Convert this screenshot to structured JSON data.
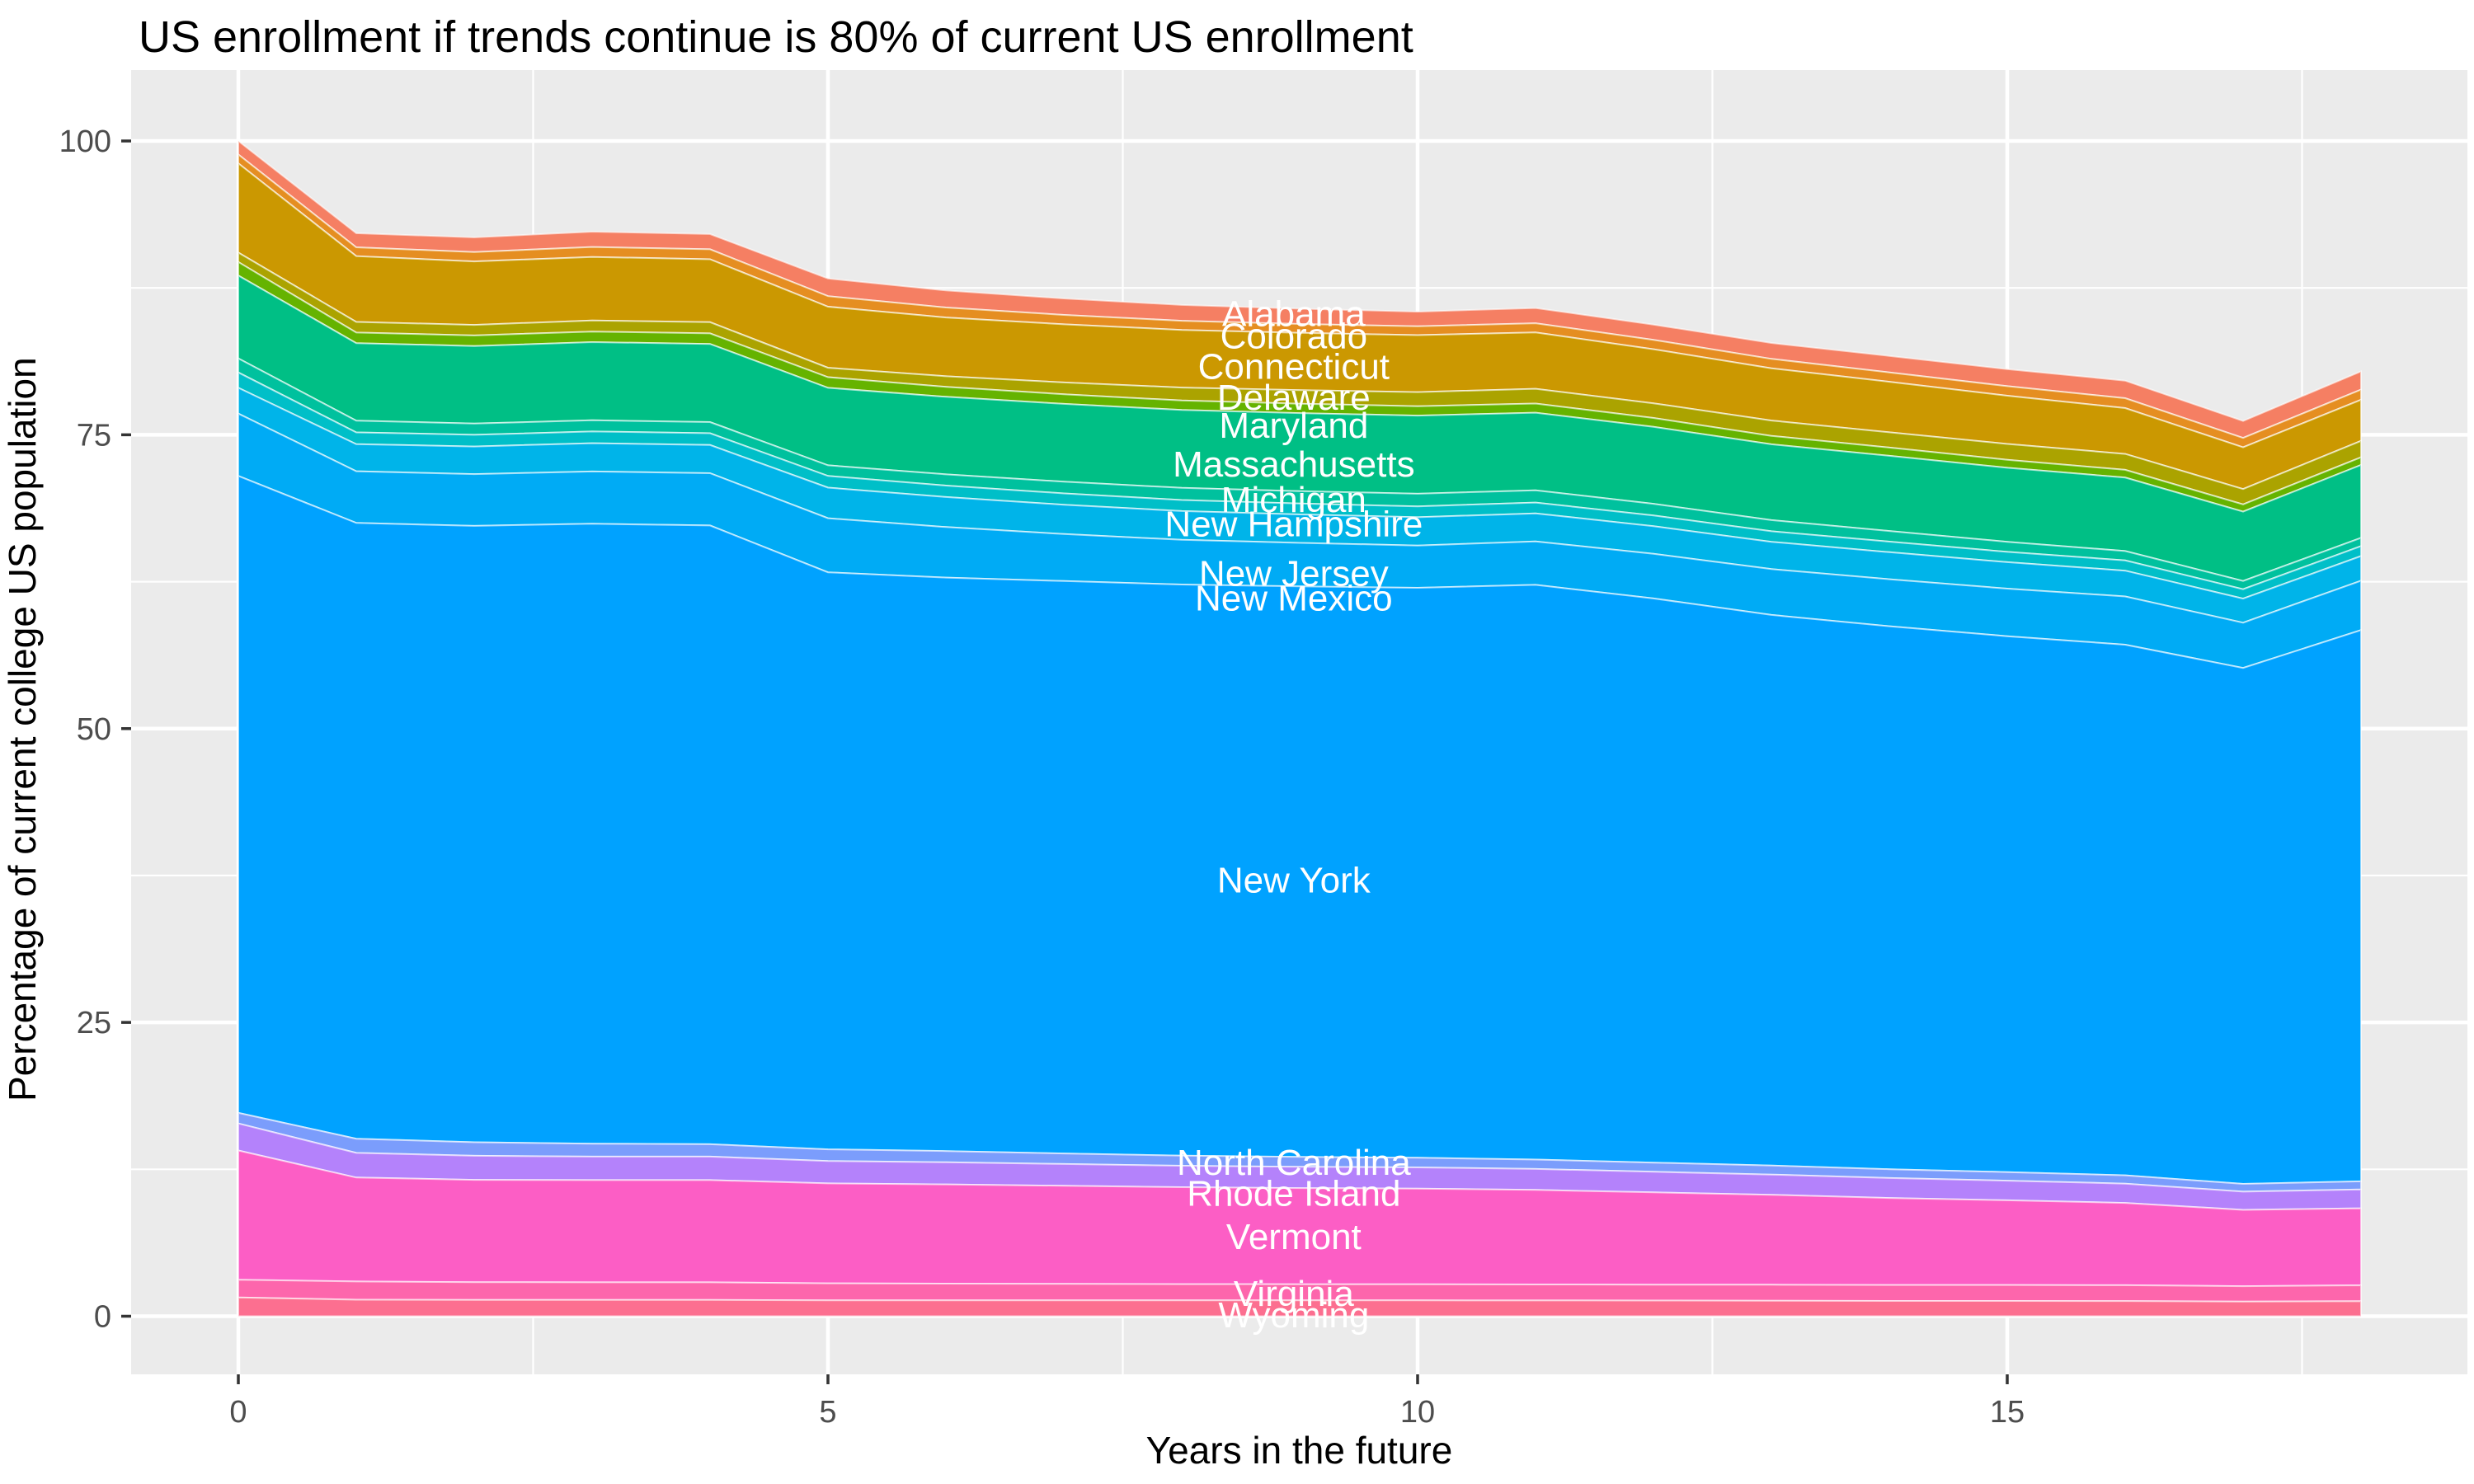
{
  "page": {
    "background": "#FFFFFF"
  },
  "chart_data": {
    "type": "area",
    "stacked": true,
    "title": "US enrollment if trends continue is 80% of current US enrollment",
    "xlabel": "Years in the future",
    "ylabel": "Percentage of current college US population",
    "grid": "on",
    "legend_position": "none",
    "panel_background": "#EBEBEB",
    "grid_color": "#FFFFFF",
    "tick_color": "#333333",
    "tick_label_color": "#4D4D4D",
    "title_color": "#000000",
    "area_label_color": "#FFFFFF",
    "xlim": [
      0,
      18
    ],
    "ylim": [
      0,
      100
    ],
    "x": [
      0,
      1,
      2,
      3,
      4,
      5,
      6,
      7,
      8,
      9,
      10,
      11,
      12,
      13,
      14,
      15,
      16,
      17,
      18
    ],
    "x_ticks": [
      0,
      5,
      10,
      15
    ],
    "x_minor_gridlines": [
      2.5,
      7.5,
      12.5,
      17.5
    ],
    "y_ticks": [
      0,
      25,
      50,
      75,
      100
    ],
    "y_minor_gridlines": [
      12.5,
      37.5,
      62.5,
      87.5
    ],
    "series": [
      {
        "name": "Alabama",
        "color": "#F57F63",
        "label_x": 8.95,
        "label_y": 85.3,
        "values": [
          1.15,
          1.2,
          1.25,
          1.3,
          1.3,
          1.5,
          1.45,
          1.4,
          1.35,
          1.3,
          1.25,
          1.3,
          1.3,
          1.35,
          1.4,
          1.45,
          1.5,
          1.45,
          1.55
        ]
      },
      {
        "name": "Colorado",
        "color": "#E58E21",
        "label_x": 8.95,
        "label_y": 83.4,
        "values": [
          0.75,
          0.75,
          0.8,
          0.85,
          0.85,
          0.9,
          0.85,
          0.8,
          0.78,
          0.76,
          0.75,
          0.78,
          0.8,
          0.8,
          0.8,
          0.82,
          0.84,
          0.8,
          0.86
        ]
      },
      {
        "name": "Connecticut",
        "color": "#CB9801",
        "label_x": 8.95,
        "label_y": 80.8,
        "values": [
          7.6,
          5.6,
          5.4,
          5.4,
          5.35,
          5.2,
          5.0,
          4.95,
          4.9,
          4.88,
          4.85,
          4.8,
          4.6,
          4.45,
          4.3,
          4.1,
          3.9,
          3.55,
          3.5
        ]
      },
      {
        "name": "Delaware",
        "color": "#ABA300",
        "label_x": 8.95,
        "label_y": 78.2,
        "values": [
          0.8,
          0.9,
          0.9,
          0.95,
          0.95,
          0.8,
          0.9,
          1.0,
          1.1,
          1.15,
          1.2,
          1.25,
          1.25,
          1.3,
          1.3,
          1.35,
          1.35,
          1.3,
          1.4
        ]
      },
      {
        "name": "Maryland",
        "color": "#65B300",
        "label_x": 8.95,
        "label_y": 75.8,
        "values": [
          1.15,
          0.9,
          0.9,
          0.9,
          0.9,
          0.9,
          0.85,
          0.82,
          0.81,
          0.8,
          0.8,
          0.78,
          0.75,
          0.72,
          0.7,
          0.68,
          0.66,
          0.62,
          0.65
        ]
      },
      {
        "name": "Massachusetts",
        "color": "#00BF85",
        "label_x": 8.95,
        "label_y": 72.5,
        "values": [
          7.05,
          6.6,
          6.6,
          6.65,
          6.65,
          6.6,
          6.6,
          6.62,
          6.63,
          6.64,
          6.65,
          6.6,
          6.55,
          6.45,
          6.4,
          6.3,
          6.25,
          5.9,
          6.2
        ]
      },
      {
        "name": "Michigan",
        "color": "#00C19E",
        "label_x": 8.95,
        "label_y": 69.5,
        "values": [
          1.2,
          1.0,
          0.95,
          0.95,
          0.95,
          0.9,
          0.95,
          1.0,
          1.03,
          1.05,
          1.07,
          1.05,
          1.0,
          0.95,
          0.9,
          0.85,
          0.8,
          0.7,
          0.7
        ]
      },
      {
        "name": "New Hampshire",
        "color": "#00BFC8",
        "label_x": 8.95,
        "label_y": 67.4,
        "values": [
          1.3,
          1.0,
          1.0,
          1.0,
          1.0,
          1.0,
          0.98,
          0.96,
          0.94,
          0.93,
          0.93,
          0.92,
          0.91,
          0.9,
          0.9,
          0.88,
          0.87,
          0.8,
          0.85
        ]
      },
      {
        "name": "New Jersey",
        "color": "#00B4E9",
        "label_x": 8.95,
        "label_y": 63.2,
        "values": [
          2.2,
          2.3,
          2.35,
          2.4,
          2.4,
          2.6,
          2.55,
          2.5,
          2.45,
          2.42,
          2.4,
          2.38,
          2.35,
          2.32,
          2.3,
          2.25,
          2.2,
          2.05,
          2.1
        ]
      },
      {
        "name": "New Mexico",
        "color": "#00ABF5",
        "label_x": 8.95,
        "label_y": 61.1,
        "values": [
          5.3,
          4.4,
          4.4,
          4.45,
          4.45,
          4.6,
          4.3,
          4.0,
          3.8,
          3.7,
          3.6,
          3.7,
          3.8,
          3.9,
          4.0,
          4.05,
          4.1,
          3.85,
          4.2
        ]
      },
      {
        "name": "New York",
        "color": "#00A2FF",
        "label_x": 8.95,
        "label_y": 37.1,
        "values": [
          54.2,
          52.4,
          52.45,
          52.75,
          52.65,
          49.1,
          48.8,
          48.7,
          48.6,
          48.55,
          48.5,
          48.9,
          48.0,
          46.85,
          46.2,
          45.6,
          45.15,
          43.9,
          46.9
        ]
      },
      {
        "name": "North Carolina",
        "color": "#7B9DFC",
        "label_x": 8.95,
        "label_y": 13.1,
        "values": [
          0.9,
          1.2,
          1.15,
          1.1,
          1.05,
          1.0,
          0.95,
          0.9,
          0.86,
          0.84,
          0.82,
          0.8,
          0.78,
          0.77,
          0.75,
          0.73,
          0.71,
          0.66,
          0.7
        ]
      },
      {
        "name": "Rhode Island",
        "color": "#B482FB",
        "label_x": 8.95,
        "label_y": 10.45,
        "values": [
          2.3,
          2.1,
          2.05,
          2.0,
          2.0,
          1.9,
          1.88,
          1.85,
          1.82,
          1.81,
          1.8,
          1.78,
          1.75,
          1.72,
          1.7,
          1.67,
          1.64,
          1.55,
          1.6
        ]
      },
      {
        "name": "Vermont",
        "color": "#FC5EC5",
        "label_x": 8.95,
        "label_y": 6.77,
        "values": [
          11.0,
          8.85,
          8.7,
          8.7,
          8.7,
          8.5,
          8.45,
          8.35,
          8.25,
          8.18,
          8.14,
          8.05,
          7.85,
          7.65,
          7.4,
          7.2,
          7.0,
          6.5,
          6.55
        ]
      },
      {
        "name": "Virginia",
        "color": "#FD66AC",
        "label_x": 8.95,
        "label_y": 1.93,
        "values": [
          1.5,
          1.55,
          1.52,
          1.5,
          1.5,
          1.45,
          1.42,
          1.4,
          1.38,
          1.37,
          1.37,
          1.36,
          1.36,
          1.36,
          1.36,
          1.36,
          1.35,
          1.3,
          1.35
        ]
      },
      {
        "name": "Wyoming",
        "color": "#FC6F90",
        "label_x": 8.95,
        "label_y": 0.1,
        "values": [
          1.6,
          1.4,
          1.38,
          1.38,
          1.38,
          1.35,
          1.35,
          1.35,
          1.35,
          1.35,
          1.35,
          1.34,
          1.33,
          1.32,
          1.3,
          1.3,
          1.29,
          1.25,
          1.28
        ]
      }
    ]
  }
}
